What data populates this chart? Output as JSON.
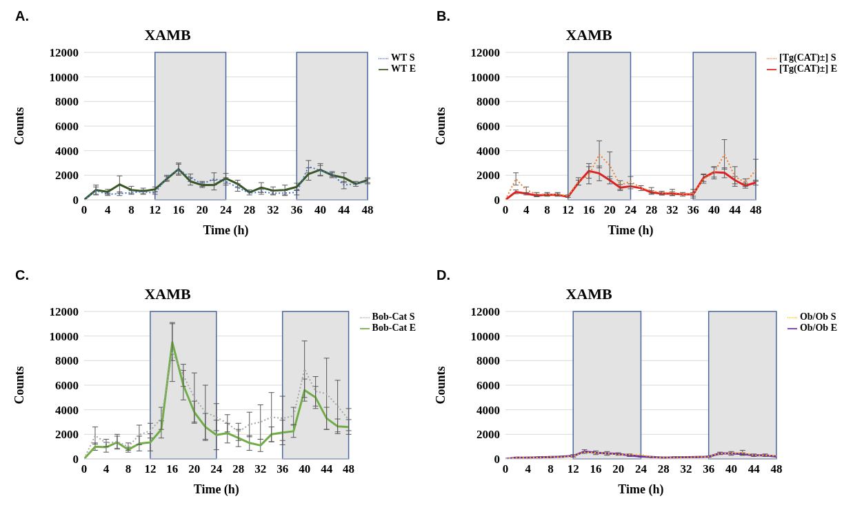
{
  "chart_data": [
    {
      "type": "line",
      "title": "XAMB",
      "xlabel": "Time (h)",
      "ylabel": "Counts",
      "annotations": [
        "A."
      ],
      "x": [
        0,
        2,
        4,
        6,
        8,
        10,
        12,
        14,
        16,
        18,
        20,
        22,
        24,
        26,
        28,
        30,
        32,
        34,
        36,
        38,
        40,
        42,
        44,
        46,
        48
      ],
      "xlim": [
        0,
        48
      ],
      "xticks": [
        0,
        4,
        8,
        12,
        16,
        20,
        24,
        28,
        32,
        36,
        40,
        44,
        48
      ],
      "ylim": [
        0,
        12000
      ],
      "yticks": [
        0,
        2000,
        4000,
        6000,
        8000,
        10000,
        12000
      ],
      "grid": "y",
      "legend": "top right",
      "marker": "none",
      "bands": [
        {
          "axis": "x",
          "from": 12,
          "to": 24,
          "color": "#e3e3e3"
        },
        {
          "axis": "x",
          "from": 36,
          "to": 48,
          "color": "#e3e3e3"
        }
      ],
      "series": [
        {
          "name": "WT S",
          "color": "#4472c4",
          "line_style": "dotted",
          "values": [
            0,
            750,
            450,
            500,
            600,
            650,
            550,
            1800,
            2500,
            1800,
            1300,
            1700,
            1500,
            1000,
            550,
            650,
            550,
            550,
            600,
            2700,
            2400,
            2100,
            1200,
            1300,
            1500
          ],
          "errors": [
            null,
            300,
            100,
            150,
            150,
            150,
            100,
            200,
            400,
            300,
            200,
            500,
            300,
            300,
            null,
            200,
            150,
            200,
            200,
            500,
            400,
            200,
            300,
            null,
            200
          ]
        },
        {
          "name": "WT E",
          "color": "#375623",
          "line_style": "solid",
          "values": [
            0,
            800,
            650,
            1250,
            800,
            700,
            850,
            1700,
            2500,
            1500,
            1200,
            1200,
            1750,
            1300,
            600,
            1000,
            750,
            800,
            1050,
            2100,
            2450,
            2000,
            1800,
            1300,
            1600
          ],
          "errors": [
            null,
            400,
            200,
            700,
            300,
            250,
            200,
            200,
            500,
            300,
            200,
            400,
            400,
            300,
            200,
            400,
            300,
            400,
            300,
            500,
            500,
            200,
            400,
            200,
            200
          ]
        }
      ]
    },
    {
      "type": "line",
      "title": "XAMB",
      "xlabel": "Time (h)",
      "ylabel": "Counts",
      "annotations": [
        "B."
      ],
      "x": [
        0,
        2,
        4,
        6,
        8,
        10,
        12,
        14,
        16,
        18,
        20,
        22,
        24,
        26,
        28,
        30,
        32,
        34,
        36,
        38,
        40,
        42,
        44,
        46,
        48
      ],
      "xlim": [
        0,
        48
      ],
      "xticks": [
        0,
        4,
        8,
        12,
        16,
        20,
        24,
        28,
        32,
        36,
        40,
        44,
        48
      ],
      "ylim": [
        0,
        12000
      ],
      "yticks": [
        0,
        2000,
        4000,
        6000,
        8000,
        10000,
        12000
      ],
      "grid": "y",
      "legend": "top right",
      "marker": "none",
      "bands": [
        {
          "axis": "x",
          "from": 12,
          "to": 24,
          "color": "#e3e3e3"
        },
        {
          "axis": "x",
          "from": 36,
          "to": 48,
          "color": "#e3e3e3"
        }
      ],
      "series": [
        {
          "name": "[Tg(CAT)±] S",
          "color": "#ed7d31",
          "line_style": "dotted",
          "values": [
            0,
            1700,
            800,
            450,
            450,
            450,
            300,
            1500,
            2000,
            3700,
            2800,
            1200,
            1500,
            950,
            750,
            550,
            600,
            450,
            500,
            1700,
            2200,
            3700,
            1900,
            1400,
            2400
          ],
          "errors": [
            null,
            500,
            250,
            150,
            150,
            150,
            100,
            300,
            700,
            1100,
            1100,
            350,
            400,
            null,
            250,
            150,
            250,
            null,
            350,
            350,
            500,
            1200,
            800,
            300,
            900
          ]
        },
        {
          "name": "[Tg(CAT)±] E",
          "color": "#e02020",
          "line_style": "solid",
          "values": [
            0,
            650,
            500,
            350,
            400,
            400,
            250,
            1400,
            2350,
            2150,
            1600,
            1000,
            1100,
            950,
            600,
            500,
            500,
            450,
            450,
            1800,
            2250,
            2200,
            1600,
            1150,
            1400
          ],
          "errors": [
            null,
            150,
            100,
            100,
            100,
            100,
            null,
            200,
            600,
            600,
            300,
            250,
            200,
            200,
            150,
            100,
            150,
            150,
            150,
            300,
            400,
            400,
            300,
            200,
            200
          ]
        }
      ]
    },
    {
      "type": "line",
      "title": "XAMB",
      "xlabel": "Time (h)",
      "ylabel": "Counts",
      "annotations": [
        "C."
      ],
      "x": [
        0,
        2,
        4,
        6,
        8,
        10,
        12,
        14,
        16,
        18,
        20,
        22,
        24,
        26,
        28,
        30,
        32,
        34,
        36,
        38,
        40,
        42,
        44,
        46,
        48
      ],
      "xlim": [
        0,
        48
      ],
      "xticks": [
        0,
        4,
        8,
        12,
        16,
        20,
        24,
        28,
        32,
        36,
        40,
        44,
        48
      ],
      "ylim": [
        0,
        12000
      ],
      "yticks": [
        0,
        2000,
        4000,
        6000,
        8000,
        10000,
        12000
      ],
      "grid": "y",
      "legend": "top right",
      "marker": "none",
      "bands": [
        {
          "axis": "x",
          "from": 12,
          "to": 24,
          "color": "#e3e3e3"
        },
        {
          "axis": "x",
          "from": 36,
          "to": 48,
          "color": "#e3e3e3"
        }
      ],
      "series": [
        {
          "name": "Bob-Cat S",
          "color": "#a5a5a5",
          "line_style": "dotted",
          "values": [
            0,
            1900,
            1300,
            1400,
            1000,
            1950,
            2300,
            3300,
            8700,
            6800,
            5000,
            3800,
            3400,
            2900,
            2200,
            2800,
            3000,
            3400,
            3300,
            3500,
            7300,
            5500,
            5300,
            4300,
            3200
          ],
          "errors": [
            null,
            700,
            300,
            600,
            300,
            800,
            600,
            900,
            2400,
            900,
            2000,
            2200,
            1100,
            700,
            700,
            1000,
            1400,
            2000,
            1800,
            700,
            2300,
            1200,
            2900,
            2100,
            900
          ]
        },
        {
          "name": "Bob-Cat E",
          "color": "#70ad47",
          "line_style": "solid",
          "values": [
            0,
            1000,
            950,
            1350,
            750,
            1250,
            1350,
            2400,
            9500,
            6000,
            3800,
            2600,
            1950,
            2100,
            1700,
            1300,
            1100,
            2000,
            2150,
            2250,
            5600,
            5000,
            3300,
            2650,
            2600
          ],
          "errors": [
            null,
            300,
            400,
            500,
            200,
            600,
            700,
            700,
            1500,
            1200,
            900,
            1100,
            1200,
            800,
            700,
            600,
            500,
            600,
            1000,
            500,
            900,
            900,
            900,
            600,
            600
          ]
        }
      ]
    },
    {
      "type": "line",
      "title": "XAMB",
      "xlabel": "Time (h)",
      "ylabel": "Counts",
      "annotations": [
        "D."
      ],
      "x": [
        0,
        2,
        4,
        6,
        8,
        10,
        12,
        14,
        16,
        18,
        20,
        22,
        24,
        26,
        28,
        30,
        32,
        34,
        36,
        38,
        40,
        42,
        44,
        46,
        48
      ],
      "xlim": [
        0,
        48
      ],
      "xticks": [
        0,
        4,
        8,
        12,
        16,
        20,
        24,
        28,
        32,
        36,
        40,
        44,
        48
      ],
      "ylim": [
        0,
        12000
      ],
      "yticks": [
        0,
        2000,
        4000,
        6000,
        8000,
        10000,
        12000
      ],
      "grid": "y",
      "legend": "top right",
      "marker": "none",
      "bands": [
        {
          "axis": "x",
          "from": 12,
          "to": 24,
          "color": "#e3e3e3"
        },
        {
          "axis": "x",
          "from": 36,
          "to": 48,
          "color": "#e3e3e3"
        }
      ],
      "series": [
        {
          "name": "Ob/Ob S",
          "color": "#ffc000",
          "line_style": "dotted",
          "values": [
            0,
            100,
            100,
            120,
            150,
            150,
            250,
            550,
            500,
            450,
            350,
            350,
            350,
            150,
            100,
            120,
            140,
            150,
            180,
            450,
            450,
            500,
            300,
            300,
            250
          ],
          "errors": [
            null,
            null,
            null,
            null,
            null,
            null,
            null,
            null,
            null,
            null,
            null,
            null,
            null,
            null,
            null,
            null,
            null,
            null,
            null,
            null,
            null,
            200,
            null,
            null,
            null
          ]
        },
        {
          "name": "Ob/Ob E",
          "color": "#7030a0",
          "line_style": "solid",
          "values": [
            0,
            100,
            100,
            120,
            150,
            180,
            250,
            600,
            500,
            450,
            400,
            300,
            200,
            150,
            100,
            120,
            140,
            150,
            180,
            450,
            450,
            400,
            300,
            300,
            200
          ],
          "errors": [
            null,
            50,
            50,
            50,
            50,
            50,
            100,
            150,
            150,
            150,
            100,
            100,
            50,
            50,
            50,
            50,
            50,
            50,
            50,
            100,
            150,
            100,
            100,
            100,
            null
          ]
        }
      ]
    }
  ]
}
